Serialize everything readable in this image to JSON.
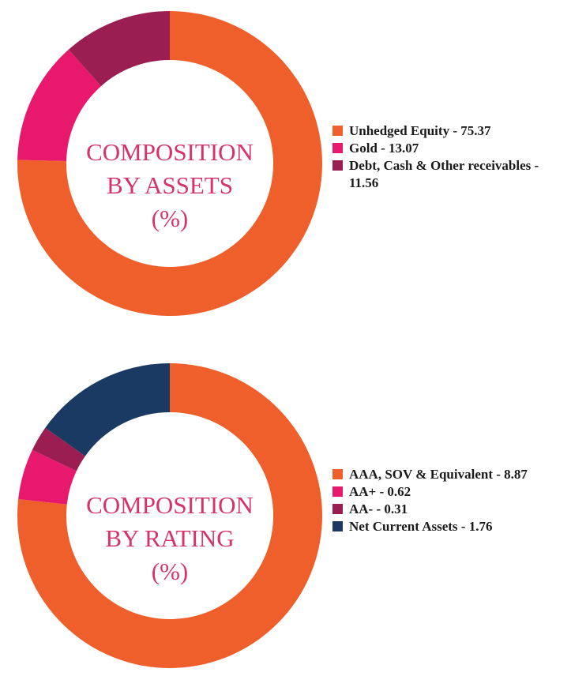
{
  "colors": {
    "orange": "#ee5f2b",
    "pink": "#e8196c",
    "maroon": "#9b1e52",
    "navy": "#1a3a63",
    "title": "#d6336c"
  },
  "chart_data": [
    {
      "type": "pie",
      "donut": true,
      "center_lines": [
        "COMPOSITION",
        "BY ASSETS",
        "(%)"
      ],
      "legend_position": "right",
      "slices": [
        {
          "label": "Unhedged Equity - 75.37",
          "value": 75.37,
          "color": "#ee5f2b"
        },
        {
          "label": "Gold - 13.07",
          "value": 13.07,
          "color": "#e8196c"
        },
        {
          "label": "Debt, Cash & Other receivables - 11.56",
          "value": 11.56,
          "color": "#9b1e52"
        }
      ]
    },
    {
      "type": "pie",
      "donut": true,
      "center_lines": [
        "COMPOSITION",
        "BY RATING",
        "(%)"
      ],
      "legend_position": "right",
      "slices": [
        {
          "label": "AAA, SOV & Equivalent - 8.87",
          "value": 8.87,
          "color": "#ee5f2b"
        },
        {
          "label": "AA+ - 0.62",
          "value": 0.62,
          "color": "#e8196c"
        },
        {
          "label": "AA- - 0.31",
          "value": 0.31,
          "color": "#9b1e52"
        },
        {
          "label": "Net Current Assets - 1.76",
          "value": 1.76,
          "color": "#1a3a63"
        }
      ]
    }
  ]
}
